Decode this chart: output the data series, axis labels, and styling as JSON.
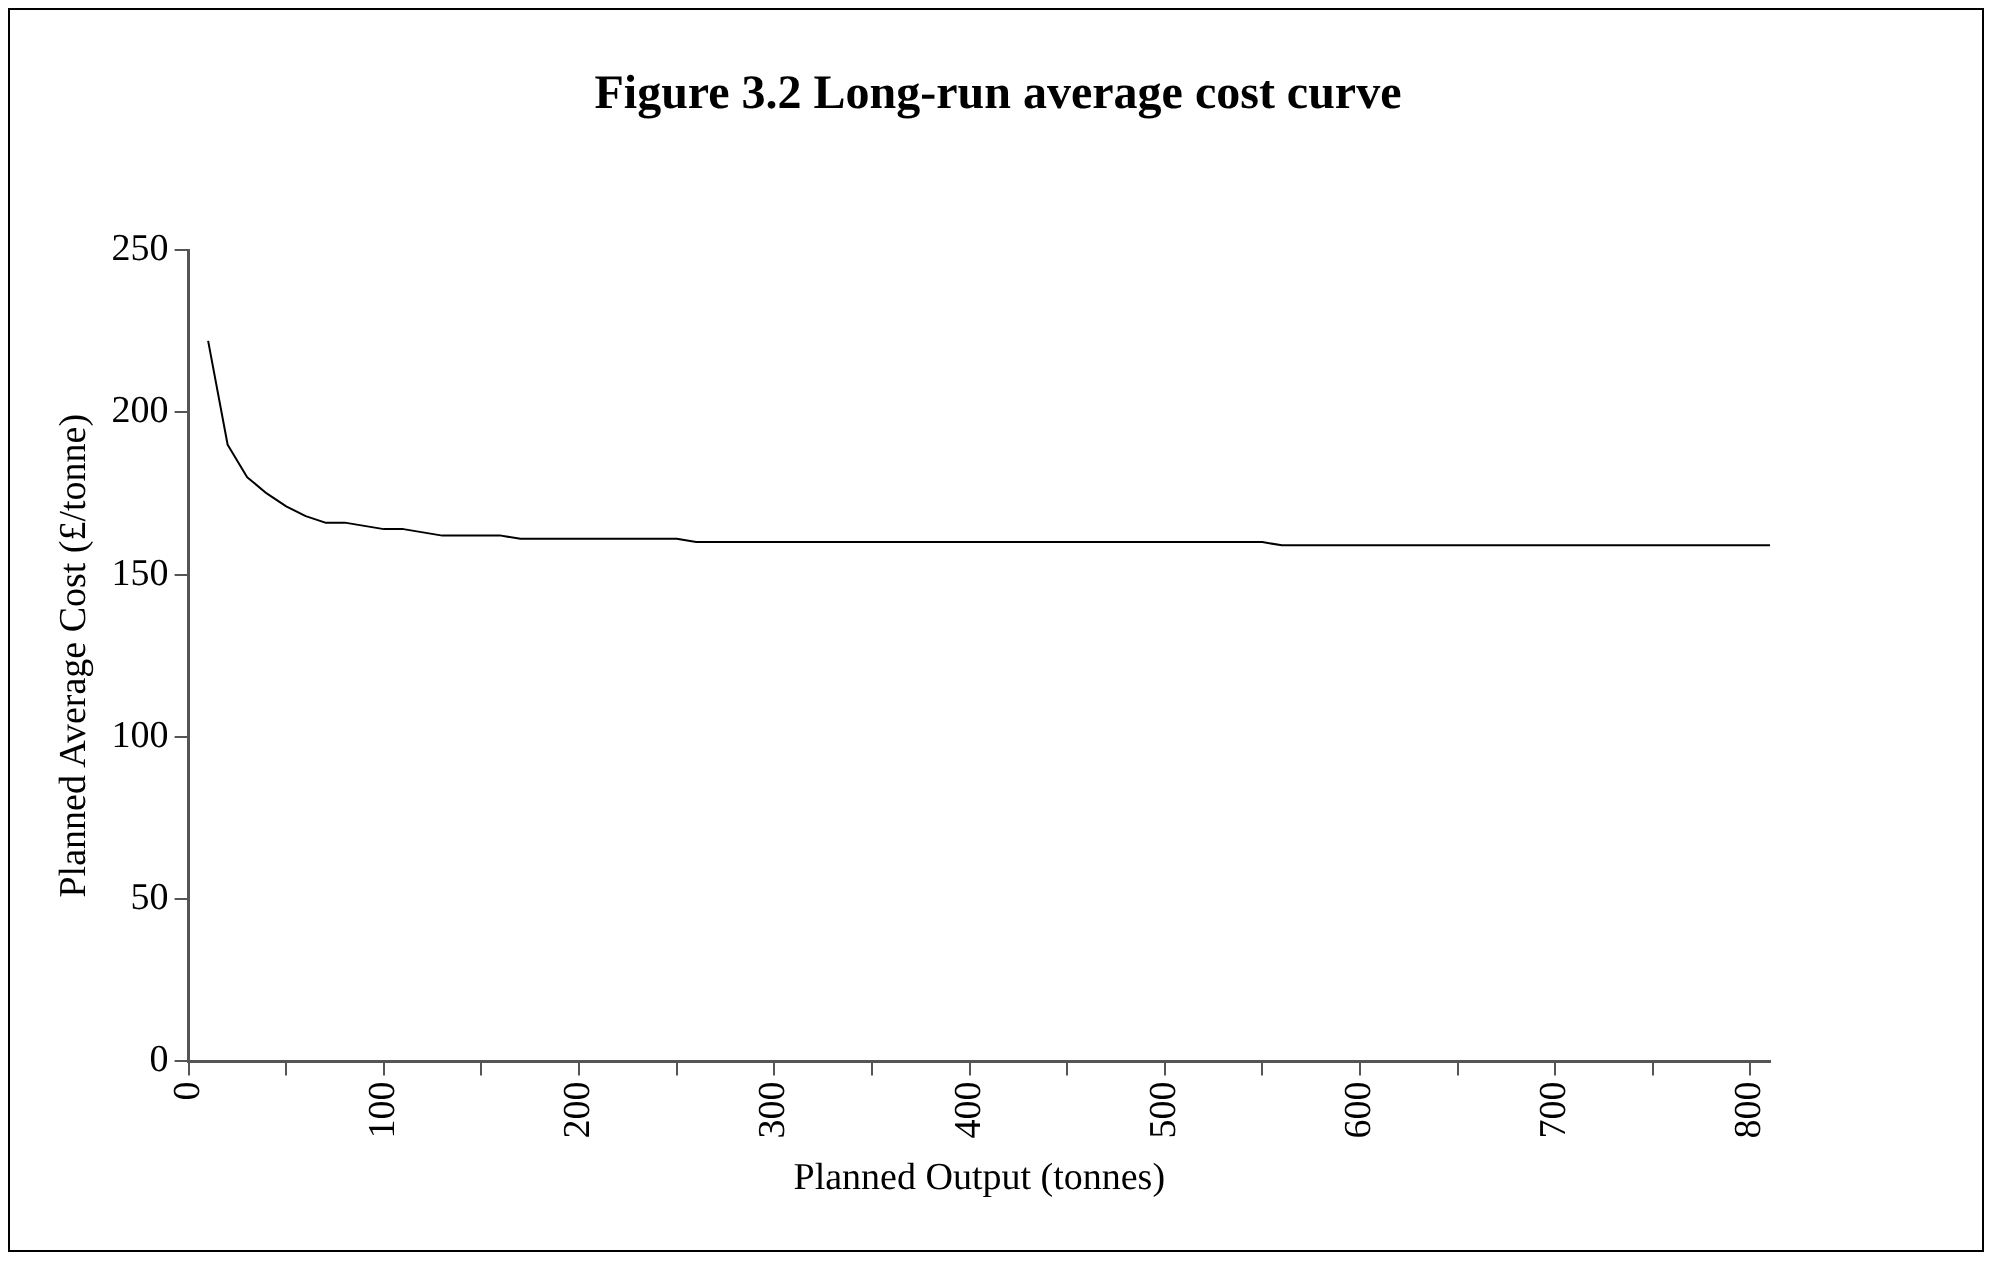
{
  "chart_data": {
    "type": "line",
    "title": "Figure 3.2 Long-run average cost curve",
    "xlabel": "Planned Output (tonnes)",
    "ylabel": "Planned Average Cost (£/tonne)",
    "x": [
      10,
      20,
      30,
      40,
      50,
      60,
      70,
      80,
      90,
      100,
      110,
      120,
      130,
      140,
      150,
      160,
      170,
      180,
      190,
      200,
      210,
      220,
      230,
      240,
      250,
      260,
      550,
      560,
      810
    ],
    "series": [
      {
        "color": "#000000",
        "values": [
          222,
          190,
          180,
          175,
          171,
          168,
          166,
          166,
          165,
          164,
          164,
          163,
          162,
          162,
          162,
          162,
          161,
          161,
          161,
          161,
          161,
          161,
          161,
          161,
          161,
          160,
          160,
          159,
          159
        ]
      }
    ],
    "xlim": [
      0,
      810
    ],
    "xticks": [
      0,
      {
        "value": 50,
        "label": null
      },
      100,
      {
        "value": 150,
        "label": null
      },
      200,
      {
        "value": 250,
        "label": null
      },
      300,
      {
        "value": 350,
        "label": null
      },
      400,
      {
        "value": 450,
        "label": null
      },
      500,
      {
        "value": 550,
        "label": null
      },
      600,
      {
        "value": 650,
        "label": null
      },
      700,
      {
        "value": 750,
        "label": null
      },
      800
    ],
    "ylim": [
      0,
      250
    ],
    "yticks": [
      0,
      50,
      100,
      150,
      200,
      250
    ],
    "grid": false,
    "legend": false,
    "marker": "none",
    "line_style": "solid"
  }
}
